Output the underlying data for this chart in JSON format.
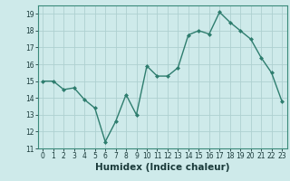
{
  "x": [
    0,
    1,
    2,
    3,
    4,
    5,
    6,
    7,
    8,
    9,
    10,
    11,
    12,
    13,
    14,
    15,
    16,
    17,
    18,
    19,
    20,
    21,
    22,
    23
  ],
  "y": [
    15.0,
    15.0,
    14.5,
    14.6,
    13.9,
    13.4,
    11.4,
    12.6,
    14.2,
    13.0,
    15.9,
    15.3,
    15.3,
    15.8,
    17.75,
    18.0,
    17.8,
    19.1,
    18.5,
    18.0,
    17.5,
    16.4,
    15.5,
    13.8
  ],
  "line_color": "#2e7d6e",
  "marker": "D",
  "marker_size": 2.0,
  "bg_color": "#ceeaea",
  "grid_color": "#aed0d0",
  "xlabel": "Humidex (Indice chaleur)",
  "xlim": [
    -0.5,
    23.5
  ],
  "ylim": [
    11,
    19.5
  ],
  "yticks": [
    11,
    12,
    13,
    14,
    15,
    16,
    17,
    18,
    19
  ],
  "xticks": [
    0,
    1,
    2,
    3,
    4,
    5,
    6,
    7,
    8,
    9,
    10,
    11,
    12,
    13,
    14,
    15,
    16,
    17,
    18,
    19,
    20,
    21,
    22,
    23
  ],
  "tick_label_size": 5.5,
  "xlabel_fontsize": 7.5,
  "line_width": 1.0
}
